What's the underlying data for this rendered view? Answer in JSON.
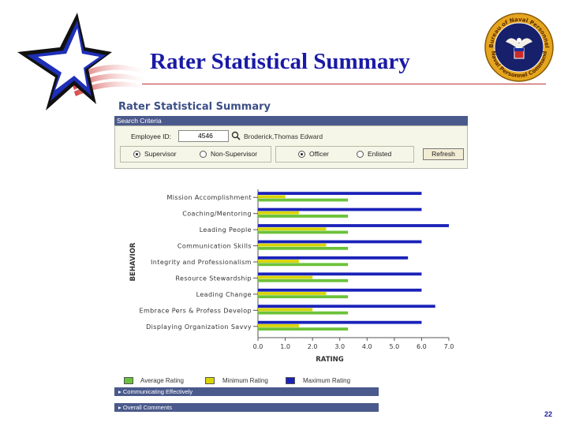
{
  "slide": {
    "title": "Rater Statistical Summary",
    "page_number": "22"
  },
  "seal": {
    "top_text": "Bureau of Naval Personnel",
    "bottom_text": "Naval Personnel Command"
  },
  "panel": {
    "heading": "Rater Statistical Summary",
    "criteria_label": "Search Criteria",
    "employee_id_label": "Employee ID:",
    "employee_id_value": "4546",
    "employee_name": "Broderick,Thomas  Edward",
    "supervisor_label": "Supervisor",
    "non_supervisor_label": "Non-Supervisor",
    "officer_label": "Officer",
    "enlisted_label": "Enlisted",
    "refresh_label": "Refresh",
    "selected_role": "Supervisor",
    "selected_category": "Officer"
  },
  "chart_data": {
    "type": "bar",
    "orientation": "horizontal",
    "categories": [
      "Mission Accomplishment",
      "Coaching/Mentoring",
      "Leading People",
      "Communication Skills",
      "Integrity and Professionalism",
      "Resource Stewardship",
      "Leading Change",
      "Embrace Pers & Profess Develop",
      "Displaying Organization Savvy"
    ],
    "series": [
      {
        "name": "Maximum Rating",
        "color": "#1a22b8",
        "values": [
          6.0,
          6.0,
          7.0,
          6.0,
          5.5,
          6.0,
          6.0,
          6.5,
          6.0
        ]
      },
      {
        "name": "Minimum Rating",
        "color": "#d9d400",
        "values": [
          1.0,
          1.5,
          2.5,
          2.5,
          1.5,
          2.0,
          2.5,
          2.0,
          1.5
        ]
      },
      {
        "name": "Average Rating",
        "color": "#6bc23a",
        "values": [
          3.3,
          3.3,
          3.3,
          3.3,
          3.3,
          3.3,
          3.3,
          3.3,
          3.3
        ]
      }
    ],
    "x_ticks": [
      "0.0",
      "1.0",
      "2.0",
      "3.0",
      "4.0",
      "5.0",
      "6.0",
      "7.0"
    ],
    "xlim": [
      0,
      7
    ],
    "xlabel": "RATING",
    "ylabel": "BEHAVIOR",
    "legend_position": "bottom",
    "legend": [
      {
        "label": "Average Rating",
        "color": "#6bc23a"
      },
      {
        "label": "Minimum Rating",
        "color": "#d9d400"
      },
      {
        "label": "Maximum Rating",
        "color": "#1a22b8"
      }
    ]
  },
  "sections": [
    {
      "label": "Communicating Effectively"
    },
    {
      "label": "Overall Comments"
    }
  ]
}
